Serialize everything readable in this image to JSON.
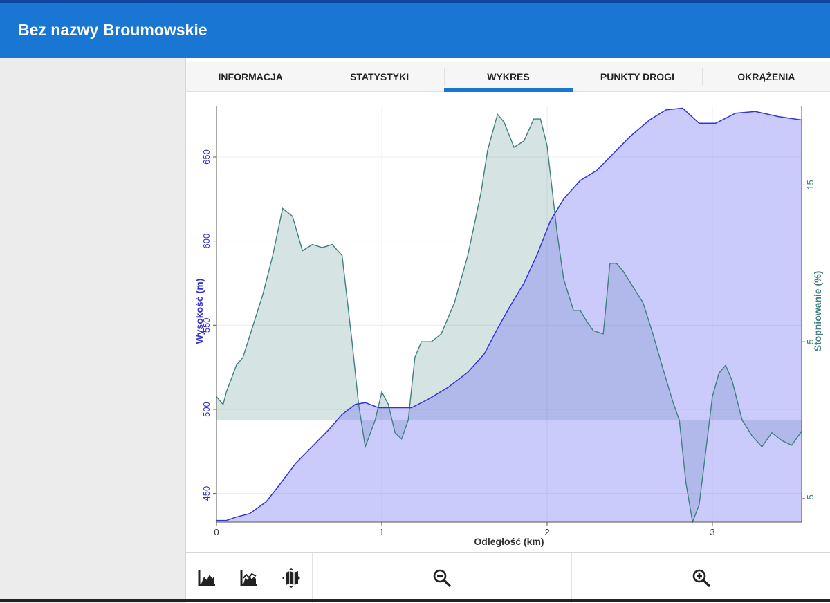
{
  "app_title": "Bez nazwy Broumowskie",
  "tabs": [
    {
      "label": "INFORMACJA",
      "active": false
    },
    {
      "label": "STATYSTYKI",
      "active": false
    },
    {
      "label": "WYKRES",
      "active": true
    },
    {
      "label": "PUNKTY DROGI",
      "active": false
    },
    {
      "label": "OKRĄŻENIA",
      "active": false
    }
  ],
  "colors": {
    "accent": "#1976d2",
    "elevation": "#3333dd",
    "grade": "#3f7f7f"
  },
  "toolbar": {
    "buttons": [
      {
        "icon": "elevation-chart-icon"
      },
      {
        "icon": "elevation-speed-chart-icon"
      },
      {
        "icon": "map-toggle-icon"
      },
      {
        "icon": "zoom-out-icon"
      },
      {
        "icon": "zoom-in-icon"
      }
    ]
  },
  "chart_data": {
    "type": "area",
    "xlabel": "Odległość (km)",
    "ylabel_left": "Wysokość (m)",
    "ylabel_right": "Stopniowanie (%)",
    "xlim": [
      0,
      3.54
    ],
    "ylim_left": [
      433,
      680
    ],
    "ylim_right": [
      -6.5,
      20
    ],
    "x_ticks": [
      "0",
      "1",
      "2",
      "3"
    ],
    "y_left_ticks": [
      "450",
      "500",
      "550",
      "600",
      "650"
    ],
    "y_right_ticks": [
      "-5",
      "5",
      "15"
    ],
    "grid": true,
    "series": [
      {
        "name": "Wysokość (m)",
        "axis": "left",
        "points": [
          [
            0,
            434
          ],
          [
            0.06,
            434
          ],
          [
            0.12,
            436
          ],
          [
            0.2,
            438
          ],
          [
            0.3,
            445
          ],
          [
            0.38,
            455
          ],
          [
            0.48,
            468
          ],
          [
            0.58,
            478
          ],
          [
            0.68,
            488
          ],
          [
            0.76,
            497
          ],
          [
            0.84,
            503
          ],
          [
            0.9,
            504
          ],
          [
            0.98,
            501
          ],
          [
            1.08,
            501
          ],
          [
            1.18,
            501
          ],
          [
            1.28,
            506
          ],
          [
            1.4,
            513
          ],
          [
            1.52,
            522
          ],
          [
            1.62,
            533
          ],
          [
            1.7,
            548
          ],
          [
            1.78,
            562
          ],
          [
            1.86,
            575
          ],
          [
            1.94,
            592
          ],
          [
            2.02,
            612
          ],
          [
            2.1,
            625
          ],
          [
            2.2,
            636
          ],
          [
            2.3,
            642
          ],
          [
            2.4,
            652
          ],
          [
            2.5,
            662
          ],
          [
            2.62,
            672
          ],
          [
            2.72,
            678
          ],
          [
            2.82,
            679
          ],
          [
            2.92,
            670
          ],
          [
            3.02,
            670
          ],
          [
            3.14,
            676
          ],
          [
            3.26,
            677
          ],
          [
            3.4,
            674
          ],
          [
            3.54,
            672
          ]
        ]
      },
      {
        "name": "Stopniowanie (%)",
        "axis": "right",
        "points": [
          [
            0,
            1.5
          ],
          [
            0.04,
            1
          ],
          [
            0.06,
            1.8
          ],
          [
            0.12,
            3.5
          ],
          [
            0.16,
            4
          ],
          [
            0.22,
            6
          ],
          [
            0.28,
            8
          ],
          [
            0.34,
            10.5
          ],
          [
            0.4,
            13.5
          ],
          [
            0.46,
            13
          ],
          [
            0.52,
            10.8
          ],
          [
            0.58,
            11.2
          ],
          [
            0.64,
            11
          ],
          [
            0.7,
            11.2
          ],
          [
            0.76,
            10.5
          ],
          [
            0.82,
            5
          ],
          [
            0.86,
            1
          ],
          [
            0.9,
            -1.7
          ],
          [
            0.96,
            0
          ],
          [
            1,
            1.8
          ],
          [
            1.04,
            1
          ],
          [
            1.08,
            -0.8
          ],
          [
            1.12,
            -1.2
          ],
          [
            1.16,
            0
          ],
          [
            1.2,
            4
          ],
          [
            1.24,
            5
          ],
          [
            1.3,
            5
          ],
          [
            1.36,
            5.5
          ],
          [
            1.44,
            7.5
          ],
          [
            1.52,
            10.5
          ],
          [
            1.6,
            14.5
          ],
          [
            1.64,
            17.2
          ],
          [
            1.7,
            19.5
          ],
          [
            1.74,
            19
          ],
          [
            1.8,
            17.4
          ],
          [
            1.86,
            17.8
          ],
          [
            1.92,
            19.2
          ],
          [
            1.96,
            19.2
          ],
          [
            2,
            17.5
          ],
          [
            2.06,
            12
          ],
          [
            2.1,
            9
          ],
          [
            2.16,
            7
          ],
          [
            2.2,
            7
          ],
          [
            2.24,
            6.3
          ],
          [
            2.28,
            5.7
          ],
          [
            2.34,
            5.5
          ],
          [
            2.38,
            10
          ],
          [
            2.42,
            10
          ],
          [
            2.46,
            9.5
          ],
          [
            2.52,
            8.5
          ],
          [
            2.58,
            7.5
          ],
          [
            2.64,
            5.5
          ],
          [
            2.7,
            3.3
          ],
          [
            2.76,
            1.2
          ],
          [
            2.8,
            0
          ],
          [
            2.84,
            -4
          ],
          [
            2.88,
            -6.5
          ],
          [
            2.92,
            -5.4
          ],
          [
            2.96,
            -2
          ],
          [
            3.0,
            1.5
          ],
          [
            3.04,
            3
          ],
          [
            3.08,
            3.5
          ],
          [
            3.12,
            2.5
          ],
          [
            3.18,
            0
          ],
          [
            3.24,
            -1
          ],
          [
            3.3,
            -1.7
          ],
          [
            3.36,
            -0.8
          ],
          [
            3.42,
            -1.3
          ],
          [
            3.48,
            -1.6
          ],
          [
            3.54,
            -0.7
          ]
        ]
      }
    ]
  }
}
